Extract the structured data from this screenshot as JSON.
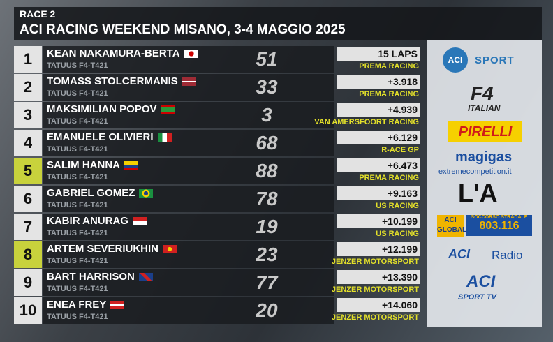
{
  "header": {
    "subtitle": "RACE 2",
    "title": "ACI RACING WEEKEND MISANO, 3-4 MAGGIO 2025"
  },
  "table": {
    "rows": [
      [
        "1",
        "KEAN NAKAMURA-BERTA",
        "TATUUS F4-T421",
        "51",
        "15 LAPS",
        "PREMA RACING"
      ],
      [
        "2",
        "TOMASS STOLCERMANIS",
        "TATUUS F4-T421",
        "33",
        "+3.918",
        "PREMA RACING"
      ],
      [
        "3",
        "MAKSIMILIAN POPOV",
        "TATUUS F4-T421",
        "3",
        "+4.939",
        "VAN AMERSFOORT RACING"
      ],
      [
        "4",
        "EMANUELE OLIVIERI",
        "TATUUS F4-T421",
        "68",
        "+6.129",
        "R-ACE GP"
      ],
      [
        "5",
        "SALIM HANNA",
        "TATUUS F4-T421",
        "88",
        "+6.473",
        "PREMA RACING"
      ],
      [
        "6",
        "GABRIEL GOMEZ",
        "TATUUS F4-T421",
        "78",
        "+9.163",
        "US RACING"
      ],
      [
        "7",
        "KABIR ANURAG",
        "TATUUS F4-T421",
        "19",
        "+10.199",
        "US RACING"
      ],
      [
        "8",
        "ARTEM SEVERIUKHIN",
        "TATUUS F4-T421",
        "23",
        "+12.199",
        "JENZER MOTORSPORT"
      ],
      [
        "9",
        "BART HARRISON",
        "TATUUS F4-T421",
        "77",
        "+13.390",
        "JENZER MOTORSPORT"
      ],
      [
        "10",
        "ENEA FREY",
        "TATUUS F4-T421",
        "20",
        "+14.060",
        "JENZER MOTORSPORT"
      ]
    ]
  },
  "sponsors": {
    "aci_sport": [
      "ACI",
      "SPORT"
    ],
    "f4": [
      "F4",
      "ITALIAN"
    ],
    "pirelli": "PIRELLI",
    "magigas": [
      "magigas",
      "extremecompetition.it"
    ],
    "la": "L'A",
    "global": [
      "ACI",
      "GLOBAL",
      "SOCCORSO STRADALE",
      "803.116"
    ],
    "radio": [
      "ACI",
      "Radio"
    ],
    "tv": [
      "ACI",
      "SPORT TV"
    ]
  }
}
